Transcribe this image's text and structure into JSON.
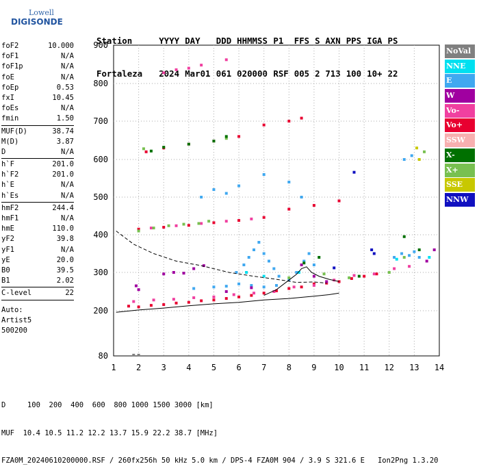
{
  "logo": {
    "line1": "Lowell",
    "line2": "DIGISONDE"
  },
  "header": {
    "row1": [
      "Station",
      "YYYY",
      "DAY",
      "DDD",
      "HHMMSS",
      "P1",
      "FFS",
      "S",
      "AXN",
      "PPS",
      "IGA",
      "PS"
    ],
    "row2": [
      "Fortaleza",
      "2024",
      "Mar01",
      "061",
      "020000",
      "RSF",
      "005",
      "2",
      "713",
      "100",
      "10+",
      "22"
    ]
  },
  "params": {
    "group1": [
      {
        "k": "foF2",
        "v": "10.000"
      },
      {
        "k": "foF1",
        "v": "N/A"
      },
      {
        "k": "foF1p",
        "v": "N/A"
      },
      {
        "k": "foE",
        "v": "N/A"
      },
      {
        "k": "foEp",
        "v": "0.53"
      },
      {
        "k": "fxI",
        "v": "10.45"
      },
      {
        "k": "foEs",
        "v": "N/A"
      },
      {
        "k": "fmin",
        "v": "1.50"
      }
    ],
    "group2": [
      {
        "k": "MUF(D)",
        "v": "38.74"
      },
      {
        "k": "M(D)",
        "v": "3.87"
      },
      {
        "k": "D",
        "v": "N/A"
      }
    ],
    "group3": [
      {
        "k": "h`F",
        "v": "201.0"
      },
      {
        "k": "h`F2",
        "v": "201.0"
      },
      {
        "k": "h`E",
        "v": "N/A"
      },
      {
        "k": "h`Es",
        "v": "N/A"
      }
    ],
    "group4": [
      {
        "k": "hmF2",
        "v": "244.4"
      },
      {
        "k": "hmF1",
        "v": "N/A"
      },
      {
        "k": "hmE",
        "v": "110.0"
      },
      {
        "k": "yF2",
        "v": "39.8"
      },
      {
        "k": "yF1",
        "v": "N/A"
      },
      {
        "k": "yE",
        "v": "20.0"
      },
      {
        "k": "B0",
        "v": "39.5"
      },
      {
        "k": "B1",
        "v": "2.02"
      }
    ],
    "group5": [
      {
        "k": "C-level",
        "v": "22"
      }
    ],
    "auto": [
      "Auto:",
      "Artist5",
      "500200"
    ]
  },
  "legend": [
    {
      "label": "NoVal",
      "color": "#808080"
    },
    {
      "label": "NNE",
      "color": "#00e0f0"
    },
    {
      "label": "E",
      "color": "#40a8f0"
    },
    {
      "label": "W",
      "color": "#a000a0"
    },
    {
      "label": "Vo-",
      "color": "#f040a0"
    },
    {
      "label": "Vo+",
      "color": "#e80030"
    },
    {
      "label": "SSW",
      "color": "#f8b0b0"
    },
    {
      "label": "X-",
      "color": "#007000"
    },
    {
      "label": "X+",
      "color": "#78c050"
    },
    {
      "label": "SSE",
      "color": "#c8c800"
    },
    {
      "label": "NNW",
      "color": "#1010c0"
    }
  ],
  "footer": {
    "d_line": "D     100  200  400  600  800 1000 1500 3000 [km]",
    "muf_line": "MUF  10.4 10.5 11.2 12.2 13.7 15.9 22.2 38.7 [MHz]",
    "file_line": "FZA0M_20240610200000.RSF / 260fx256h 50 kHz 5.0 km / DPS-4 FZA0M 904 / 3.9 S 321.6 E   Ion2Png 1.3.20"
  },
  "chart_data": {
    "type": "scatter",
    "x_ticks": [
      1,
      2,
      3,
      4,
      5,
      6,
      7,
      8,
      9,
      10,
      11,
      12,
      13,
      14
    ],
    "y_ticks": [
      80,
      200,
      300,
      400,
      500,
      600,
      700,
      800,
      900
    ],
    "xlim": [
      1,
      14
    ],
    "ylim_labels": [
      80,
      900
    ],
    "grid": true,
    "legend_position": "right",
    "series": [
      {
        "color": "#e80030",
        "points": [
          [
            1.6,
            212
          ],
          [
            2.0,
            210
          ],
          [
            2.5,
            214
          ],
          [
            3.0,
            216
          ],
          [
            3.5,
            220
          ],
          [
            4.0,
            222
          ],
          [
            4.5,
            226
          ],
          [
            5.0,
            228
          ],
          [
            5.5,
            232
          ],
          [
            6.0,
            236
          ],
          [
            6.5,
            240
          ],
          [
            7.0,
            246
          ],
          [
            7.5,
            252
          ],
          [
            8.0,
            258
          ],
          [
            8.5,
            262
          ],
          [
            9.0,
            270
          ],
          [
            9.5,
            272
          ],
          [
            10.0,
            276
          ],
          [
            10.5,
            284
          ],
          [
            11.0,
            290
          ],
          [
            11.5,
            296
          ],
          [
            2.0,
            415
          ],
          [
            3.0,
            420
          ],
          [
            4.0,
            425
          ],
          [
            5.0,
            432
          ],
          [
            6.0,
            438
          ],
          [
            7.0,
            446
          ],
          [
            8.0,
            468
          ],
          [
            9.0,
            478
          ],
          [
            10.0,
            490
          ],
          [
            2.3,
            620
          ],
          [
            3.0,
            630
          ],
          [
            4.0,
            640
          ],
          [
            5.0,
            648
          ],
          [
            6.0,
            660
          ],
          [
            7.0,
            690
          ],
          [
            8.0,
            700
          ],
          [
            8.5,
            708
          ]
        ]
      },
      {
        "color": "#f040a0",
        "points": [
          [
            1.8,
            224
          ],
          [
            2.6,
            228
          ],
          [
            3.4,
            230
          ],
          [
            4.2,
            234
          ],
          [
            5.0,
            236
          ],
          [
            5.8,
            242
          ],
          [
            6.6,
            246
          ],
          [
            7.4,
            250
          ],
          [
            8.2,
            262
          ],
          [
            9.0,
            266
          ],
          [
            9.8,
            280
          ],
          [
            10.6,
            292
          ],
          [
            11.4,
            296
          ],
          [
            12.2,
            310
          ],
          [
            12.8,
            316
          ],
          [
            2.5,
            418
          ],
          [
            3.5,
            424
          ],
          [
            4.5,
            430
          ],
          [
            5.5,
            436
          ],
          [
            6.5,
            442
          ],
          [
            3.0,
            828
          ],
          [
            3.5,
            836
          ],
          [
            4.0,
            840
          ],
          [
            4.5,
            848
          ],
          [
            5.5,
            862
          ]
        ]
      },
      {
        "color": "#40a8f0",
        "points": [
          [
            5.9,
            300
          ],
          [
            6.2,
            320
          ],
          [
            6.4,
            340
          ],
          [
            6.6,
            360
          ],
          [
            6.8,
            380
          ],
          [
            7.0,
            350
          ],
          [
            7.2,
            330
          ],
          [
            7.4,
            310
          ],
          [
            7.6,
            290
          ],
          [
            8.0,
            280
          ],
          [
            8.3,
            300
          ],
          [
            8.6,
            330
          ],
          [
            8.8,
            350
          ],
          [
            9.0,
            320
          ],
          [
            6.0,
            270
          ],
          [
            6.5,
            266
          ],
          [
            7.0,
            262
          ],
          [
            7.5,
            266
          ],
          [
            4.2,
            258
          ],
          [
            5.0,
            262
          ],
          [
            5.5,
            264
          ],
          [
            4.5,
            500
          ],
          [
            5.0,
            520
          ],
          [
            5.5,
            510
          ],
          [
            6.0,
            530
          ],
          [
            7.0,
            560
          ],
          [
            8.0,
            540
          ],
          [
            8.5,
            500
          ],
          [
            12.2,
            340
          ],
          [
            12.5,
            350
          ],
          [
            12.8,
            345
          ],
          [
            13.0,
            355
          ],
          [
            13.2,
            340
          ],
          [
            12.6,
            600
          ],
          [
            12.9,
            610
          ]
        ]
      },
      {
        "color": "#a000a0",
        "points": [
          [
            1.9,
            265
          ],
          [
            2.0,
            255
          ],
          [
            3.0,
            296
          ],
          [
            3.4,
            300
          ],
          [
            3.8,
            298
          ],
          [
            4.2,
            310
          ],
          [
            4.6,
            318
          ],
          [
            5.5,
            250
          ],
          [
            6.5,
            260
          ],
          [
            8.5,
            320
          ],
          [
            9.0,
            290
          ],
          [
            9.5,
            276
          ],
          [
            13.5,
            330
          ],
          [
            13.8,
            360
          ]
        ]
      },
      {
        "color": "#78c050",
        "points": [
          [
            2.0,
            410
          ],
          [
            2.6,
            418
          ],
          [
            3.2,
            424
          ],
          [
            3.8,
            428
          ],
          [
            4.4,
            430
          ],
          [
            4.8,
            436
          ],
          [
            8.0,
            286
          ],
          [
            9.4,
            296
          ],
          [
            10.4,
            286
          ],
          [
            12.0,
            300
          ],
          [
            12.6,
            340
          ],
          [
            13.4,
            620
          ],
          [
            2.2,
            628
          ],
          [
            5.5,
            655
          ]
        ]
      },
      {
        "color": "#007000",
        "points": [
          [
            2.5,
            622
          ],
          [
            3.0,
            632
          ],
          [
            4.0,
            640
          ],
          [
            5.0,
            648
          ],
          [
            5.5,
            660
          ],
          [
            12.6,
            395
          ],
          [
            13.2,
            360
          ],
          [
            10.8,
            290
          ],
          [
            8.6,
            325
          ],
          [
            9.2,
            340
          ]
        ]
      },
      {
        "color": "#00e0f0",
        "points": [
          [
            6.3,
            300
          ],
          [
            7.0,
            290
          ],
          [
            8.4,
            300
          ],
          [
            12.3,
            335
          ],
          [
            13.6,
            340
          ]
        ]
      },
      {
        "color": "#1010c0",
        "points": [
          [
            11.3,
            360
          ],
          [
            11.4,
            350
          ],
          [
            10.6,
            566
          ],
          [
            9.8,
            312
          ]
        ]
      },
      {
        "color": "#c8c800",
        "points": [
          [
            13.1,
            630
          ],
          [
            13.2,
            600
          ]
        ]
      },
      {
        "color": "#808080",
        "points": [
          [
            1.8,
            82
          ],
          [
            2.0,
            82
          ]
        ]
      }
    ],
    "traces": [
      {
        "style": "dashed",
        "points": [
          [
            1.1,
            410
          ],
          [
            1.8,
            375
          ],
          [
            2.6,
            350
          ],
          [
            3.5,
            330
          ],
          [
            4.5,
            318
          ],
          [
            5.6,
            300
          ],
          [
            6.6,
            290
          ],
          [
            7.5,
            282
          ],
          [
            8.3,
            274
          ],
          [
            9.0,
            275
          ],
          [
            9.5,
            272
          ]
        ]
      },
      {
        "style": "solid",
        "points": [
          [
            1.1,
            196
          ],
          [
            2.0,
            202
          ],
          [
            3.0,
            207
          ],
          [
            4.0,
            213
          ],
          [
            5.0,
            218
          ],
          [
            6.0,
            222
          ],
          [
            7.0,
            228
          ],
          [
            8.0,
            232
          ],
          [
            9.0,
            238
          ],
          [
            9.6,
            242
          ],
          [
            10.0,
            246
          ]
        ]
      },
      {
        "style": "solid",
        "points": [
          [
            7.0,
            240
          ],
          [
            7.5,
            255
          ],
          [
            8.0,
            280
          ],
          [
            8.3,
            295
          ],
          [
            8.5,
            310
          ],
          [
            8.7,
            315
          ],
          [
            8.9,
            300
          ],
          [
            9.2,
            290
          ],
          [
            9.6,
            282
          ],
          [
            10.0,
            276
          ]
        ]
      }
    ]
  }
}
